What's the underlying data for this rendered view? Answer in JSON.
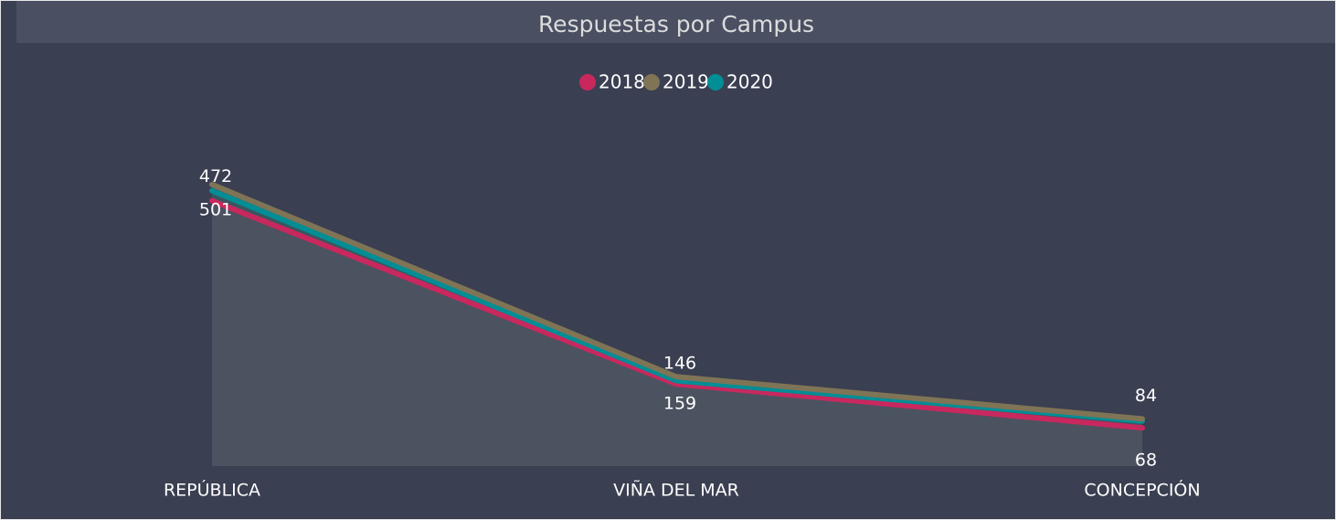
{
  "chart_data": {
    "type": "area",
    "title": "Respuestas por Campus",
    "categories": [
      "REPÚBLICA",
      "VIÑA DEL MAR",
      "CONCEPCIÓN"
    ],
    "series": [
      {
        "name": "2018",
        "color": "#c8285e",
        "values": [
          472,
          146,
          68
        ],
        "data_labels": true
      },
      {
        "name": "2019",
        "color": "#7f7455",
        "values": [
          501,
          159,
          84
        ],
        "data_labels": true
      },
      {
        "name": "2020",
        "color": "#038d95",
        "values": [
          490,
          152,
          80
        ],
        "data_labels": false
      }
    ],
    "ylim": [
      0,
      600
    ],
    "legend": "top"
  }
}
